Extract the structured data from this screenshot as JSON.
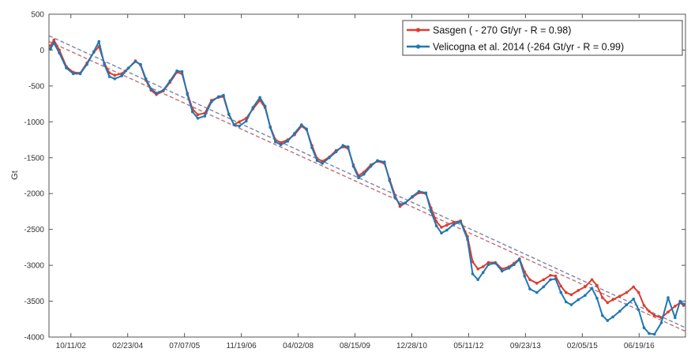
{
  "chart_data": {
    "type": "line",
    "title": "",
    "xlabel": "",
    "ylabel": "Gt",
    "ylim": [
      -4000,
      500
    ],
    "xlim": [
      "2002-04-01",
      "2017-08-01"
    ],
    "y_ticks": [
      500,
      0,
      -500,
      -1000,
      -1500,
      -2000,
      -2500,
      -3000,
      -3500,
      -4000
    ],
    "y_tick_labels": [
      "500",
      "0",
      "-500",
      "-1000",
      "-1500",
      "-2000",
      "-2500",
      "-3000",
      "-3500",
      "-4000"
    ],
    "x_ticks": [
      "2002-10-11",
      "2004-02-23",
      "2005-07-07",
      "2006-11-19",
      "2008-04-02",
      "2009-08-15",
      "2010-12-28",
      "2012-05-11",
      "2013-09-23",
      "2015-02-05",
      "2016-06-19"
    ],
    "x_tick_labels": [
      "10/11/02",
      "02/23/04",
      "07/07/05",
      "11/19/06",
      "04/02/08",
      "08/15/09",
      "12/28/10",
      "05/11/12",
      "09/23/13",
      "02/05/15",
      "06/19/16"
    ],
    "grid": false,
    "legend_position": "top-right",
    "series": [
      {
        "name": "Sasgen ( - 270 Gt/yr - R = 0.98)",
        "color": "#e03a2e",
        "style": "solid-markers",
        "x": [
          "2002-04-15",
          "2002-05-15",
          "2002-07-01",
          "2002-09-01",
          "2002-11-01",
          "2003-01-01",
          "2003-03-01",
          "2003-05-01",
          "2003-06-15",
          "2003-08-01",
          "2003-09-15",
          "2003-11-01",
          "2004-01-01",
          "2004-03-01",
          "2004-05-01",
          "2004-06-15",
          "2004-08-01",
          "2004-09-15",
          "2004-11-01",
          "2005-01-01",
          "2005-03-01",
          "2005-05-01",
          "2005-06-15",
          "2005-08-01",
          "2005-09-15",
          "2005-11-01",
          "2006-01-01",
          "2006-03-01",
          "2006-05-01",
          "2006-06-15",
          "2006-08-01",
          "2006-09-15",
          "2006-11-01",
          "2007-01-01",
          "2007-03-01",
          "2007-05-01",
          "2007-06-15",
          "2007-08-01",
          "2007-09-15",
          "2007-11-01",
          "2008-01-01",
          "2008-03-01",
          "2008-05-01",
          "2008-06-15",
          "2008-08-01",
          "2008-09-15",
          "2008-11-01",
          "2009-01-01",
          "2009-03-01",
          "2009-05-01",
          "2009-06-15",
          "2009-08-01",
          "2009-09-15",
          "2009-11-01",
          "2010-01-01",
          "2010-03-01",
          "2010-05-01",
          "2010-06-15",
          "2010-08-01",
          "2010-09-15",
          "2010-11-01",
          "2011-01-01",
          "2011-03-01",
          "2011-05-01",
          "2011-06-15",
          "2011-08-01",
          "2011-09-15",
          "2011-11-01",
          "2012-01-01",
          "2012-03-01",
          "2012-05-01",
          "2012-06-15",
          "2012-08-01",
          "2012-09-15",
          "2012-11-01",
          "2013-01-01",
          "2013-03-01",
          "2013-05-01",
          "2013-06-15",
          "2013-08-01",
          "2013-09-15",
          "2013-11-01",
          "2014-01-01",
          "2014-03-01",
          "2014-05-01",
          "2014-06-15",
          "2014-08-01",
          "2014-09-15",
          "2014-11-01",
          "2015-01-01",
          "2015-03-01",
          "2015-05-01",
          "2015-06-15",
          "2015-08-01",
          "2015-09-15",
          "2015-11-01",
          "2016-01-01",
          "2016-03-01",
          "2016-05-01",
          "2016-06-15",
          "2016-08-01",
          "2016-09-15",
          "2016-11-01",
          "2017-01-01",
          "2017-03-01",
          "2017-05-01",
          "2017-06-15",
          "2017-07-15"
        ],
        "y": [
          60,
          140,
          0,
          -230,
          -310,
          -320,
          -180,
          -30,
          50,
          -180,
          -320,
          -350,
          -330,
          -250,
          -150,
          -210,
          -420,
          -560,
          -620,
          -570,
          -450,
          -310,
          -330,
          -600,
          -820,
          -900,
          -880,
          -700,
          -660,
          -650,
          -900,
          -1040,
          -1000,
          -950,
          -820,
          -700,
          -800,
          -1070,
          -1250,
          -1290,
          -1250,
          -1180,
          -1060,
          -1110,
          -1330,
          -1510,
          -1550,
          -1490,
          -1400,
          -1350,
          -1370,
          -1600,
          -1750,
          -1700,
          -1600,
          -1550,
          -1580,
          -1800,
          -2020,
          -2180,
          -2130,
          -2050,
          -1990,
          -2000,
          -2200,
          -2390,
          -2470,
          -2440,
          -2400,
          -2380,
          -2600,
          -2950,
          -3050,
          -3020,
          -2960,
          -2960,
          -3050,
          -3020,
          -2970,
          -2910,
          -3090,
          -3200,
          -3250,
          -3200,
          -3140,
          -3150,
          -3290,
          -3380,
          -3410,
          -3350,
          -3300,
          -3200,
          -3280,
          -3450,
          -3520,
          -3480,
          -3430,
          -3380,
          -3300,
          -3380,
          -3560,
          -3640,
          -3700,
          -3730,
          -3650,
          -3570,
          -3520,
          -3560
        ]
      },
      {
        "name": "Velicogna et al. 2014 (-264 Gt/yr - R = 0.99)",
        "color": "#1f78b4",
        "style": "solid-markers",
        "x": [
          "2002-04-15",
          "2002-05-15",
          "2002-07-01",
          "2002-09-01",
          "2002-11-01",
          "2003-01-01",
          "2003-03-01",
          "2003-05-01",
          "2003-06-15",
          "2003-08-01",
          "2003-09-15",
          "2003-11-01",
          "2004-01-01",
          "2004-03-01",
          "2004-05-01",
          "2004-06-15",
          "2004-08-01",
          "2004-09-15",
          "2004-11-01",
          "2005-01-01",
          "2005-03-01",
          "2005-05-01",
          "2005-06-15",
          "2005-08-01",
          "2005-09-15",
          "2005-11-01",
          "2006-01-01",
          "2006-03-01",
          "2006-05-01",
          "2006-06-15",
          "2006-08-01",
          "2006-09-15",
          "2006-11-01",
          "2007-01-01",
          "2007-03-01",
          "2007-05-01",
          "2007-06-15",
          "2007-08-01",
          "2007-09-15",
          "2007-11-01",
          "2008-01-01",
          "2008-03-01",
          "2008-05-01",
          "2008-06-15",
          "2008-08-01",
          "2008-09-15",
          "2008-11-01",
          "2009-01-01",
          "2009-03-01",
          "2009-05-01",
          "2009-06-15",
          "2009-08-01",
          "2009-09-15",
          "2009-11-01",
          "2010-01-01",
          "2010-03-01",
          "2010-05-01",
          "2010-06-15",
          "2010-08-01",
          "2010-09-15",
          "2010-11-01",
          "2011-01-01",
          "2011-03-01",
          "2011-05-01",
          "2011-06-15",
          "2011-08-01",
          "2011-09-15",
          "2011-11-01",
          "2012-01-01",
          "2012-03-01",
          "2012-05-01",
          "2012-06-15",
          "2012-08-01",
          "2012-09-15",
          "2012-11-01",
          "2013-01-01",
          "2013-03-01",
          "2013-05-01",
          "2013-06-15",
          "2013-08-01",
          "2013-09-15",
          "2013-11-01",
          "2014-01-01",
          "2014-03-01",
          "2014-05-01",
          "2014-06-15",
          "2014-08-01",
          "2014-09-15",
          "2014-11-01",
          "2015-01-01",
          "2015-03-01",
          "2015-05-01",
          "2015-06-15",
          "2015-08-01",
          "2015-09-15",
          "2015-11-01",
          "2016-01-01",
          "2016-03-01",
          "2016-05-01",
          "2016-06-15",
          "2016-08-01",
          "2016-09-15",
          "2016-11-01",
          "2017-01-01",
          "2017-03-01",
          "2017-05-01",
          "2017-06-15",
          "2017-07-15"
        ],
        "y": [
          20,
          100,
          -40,
          -250,
          -330,
          -330,
          -200,
          -20,
          120,
          -200,
          -370,
          -400,
          -360,
          -250,
          -160,
          -200,
          -400,
          -540,
          -600,
          -560,
          -430,
          -290,
          -300,
          -620,
          -860,
          -950,
          -920,
          -720,
          -650,
          -630,
          -890,
          -1040,
          -1060,
          -990,
          -800,
          -660,
          -780,
          -1080,
          -1280,
          -1320,
          -1270,
          -1160,
          -1040,
          -1100,
          -1360,
          -1540,
          -1580,
          -1500,
          -1420,
          -1330,
          -1350,
          -1620,
          -1780,
          -1730,
          -1620,
          -1540,
          -1560,
          -1820,
          -2050,
          -2150,
          -2130,
          -2040,
          -1970,
          -1990,
          -2250,
          -2450,
          -2550,
          -2510,
          -2430,
          -2390,
          -2640,
          -3120,
          -3200,
          -3100,
          -2990,
          -2970,
          -3080,
          -3040,
          -2990,
          -2920,
          -3150,
          -3330,
          -3380,
          -3300,
          -3200,
          -3190,
          -3380,
          -3510,
          -3550,
          -3480,
          -3420,
          -3320,
          -3460,
          -3700,
          -3770,
          -3720,
          -3640,
          -3550,
          -3470,
          -3620,
          -3870,
          -3950,
          -3960,
          -3800,
          -3450,
          -3730,
          -3500,
          -3540
        ]
      }
    ],
    "trend_lines": [
      {
        "name": "Sasgen trend",
        "color": "#c07070",
        "style": "dashed",
        "x": [
          "2002-04-01",
          "2017-08-01"
        ],
        "y": [
          120,
          -3920
        ]
      },
      {
        "name": "Velicogna trend",
        "color": "#7a85a8",
        "style": "dashed",
        "x": [
          "2002-04-01",
          "2017-08-01"
        ],
        "y": [
          200,
          -3870
        ]
      }
    ]
  }
}
